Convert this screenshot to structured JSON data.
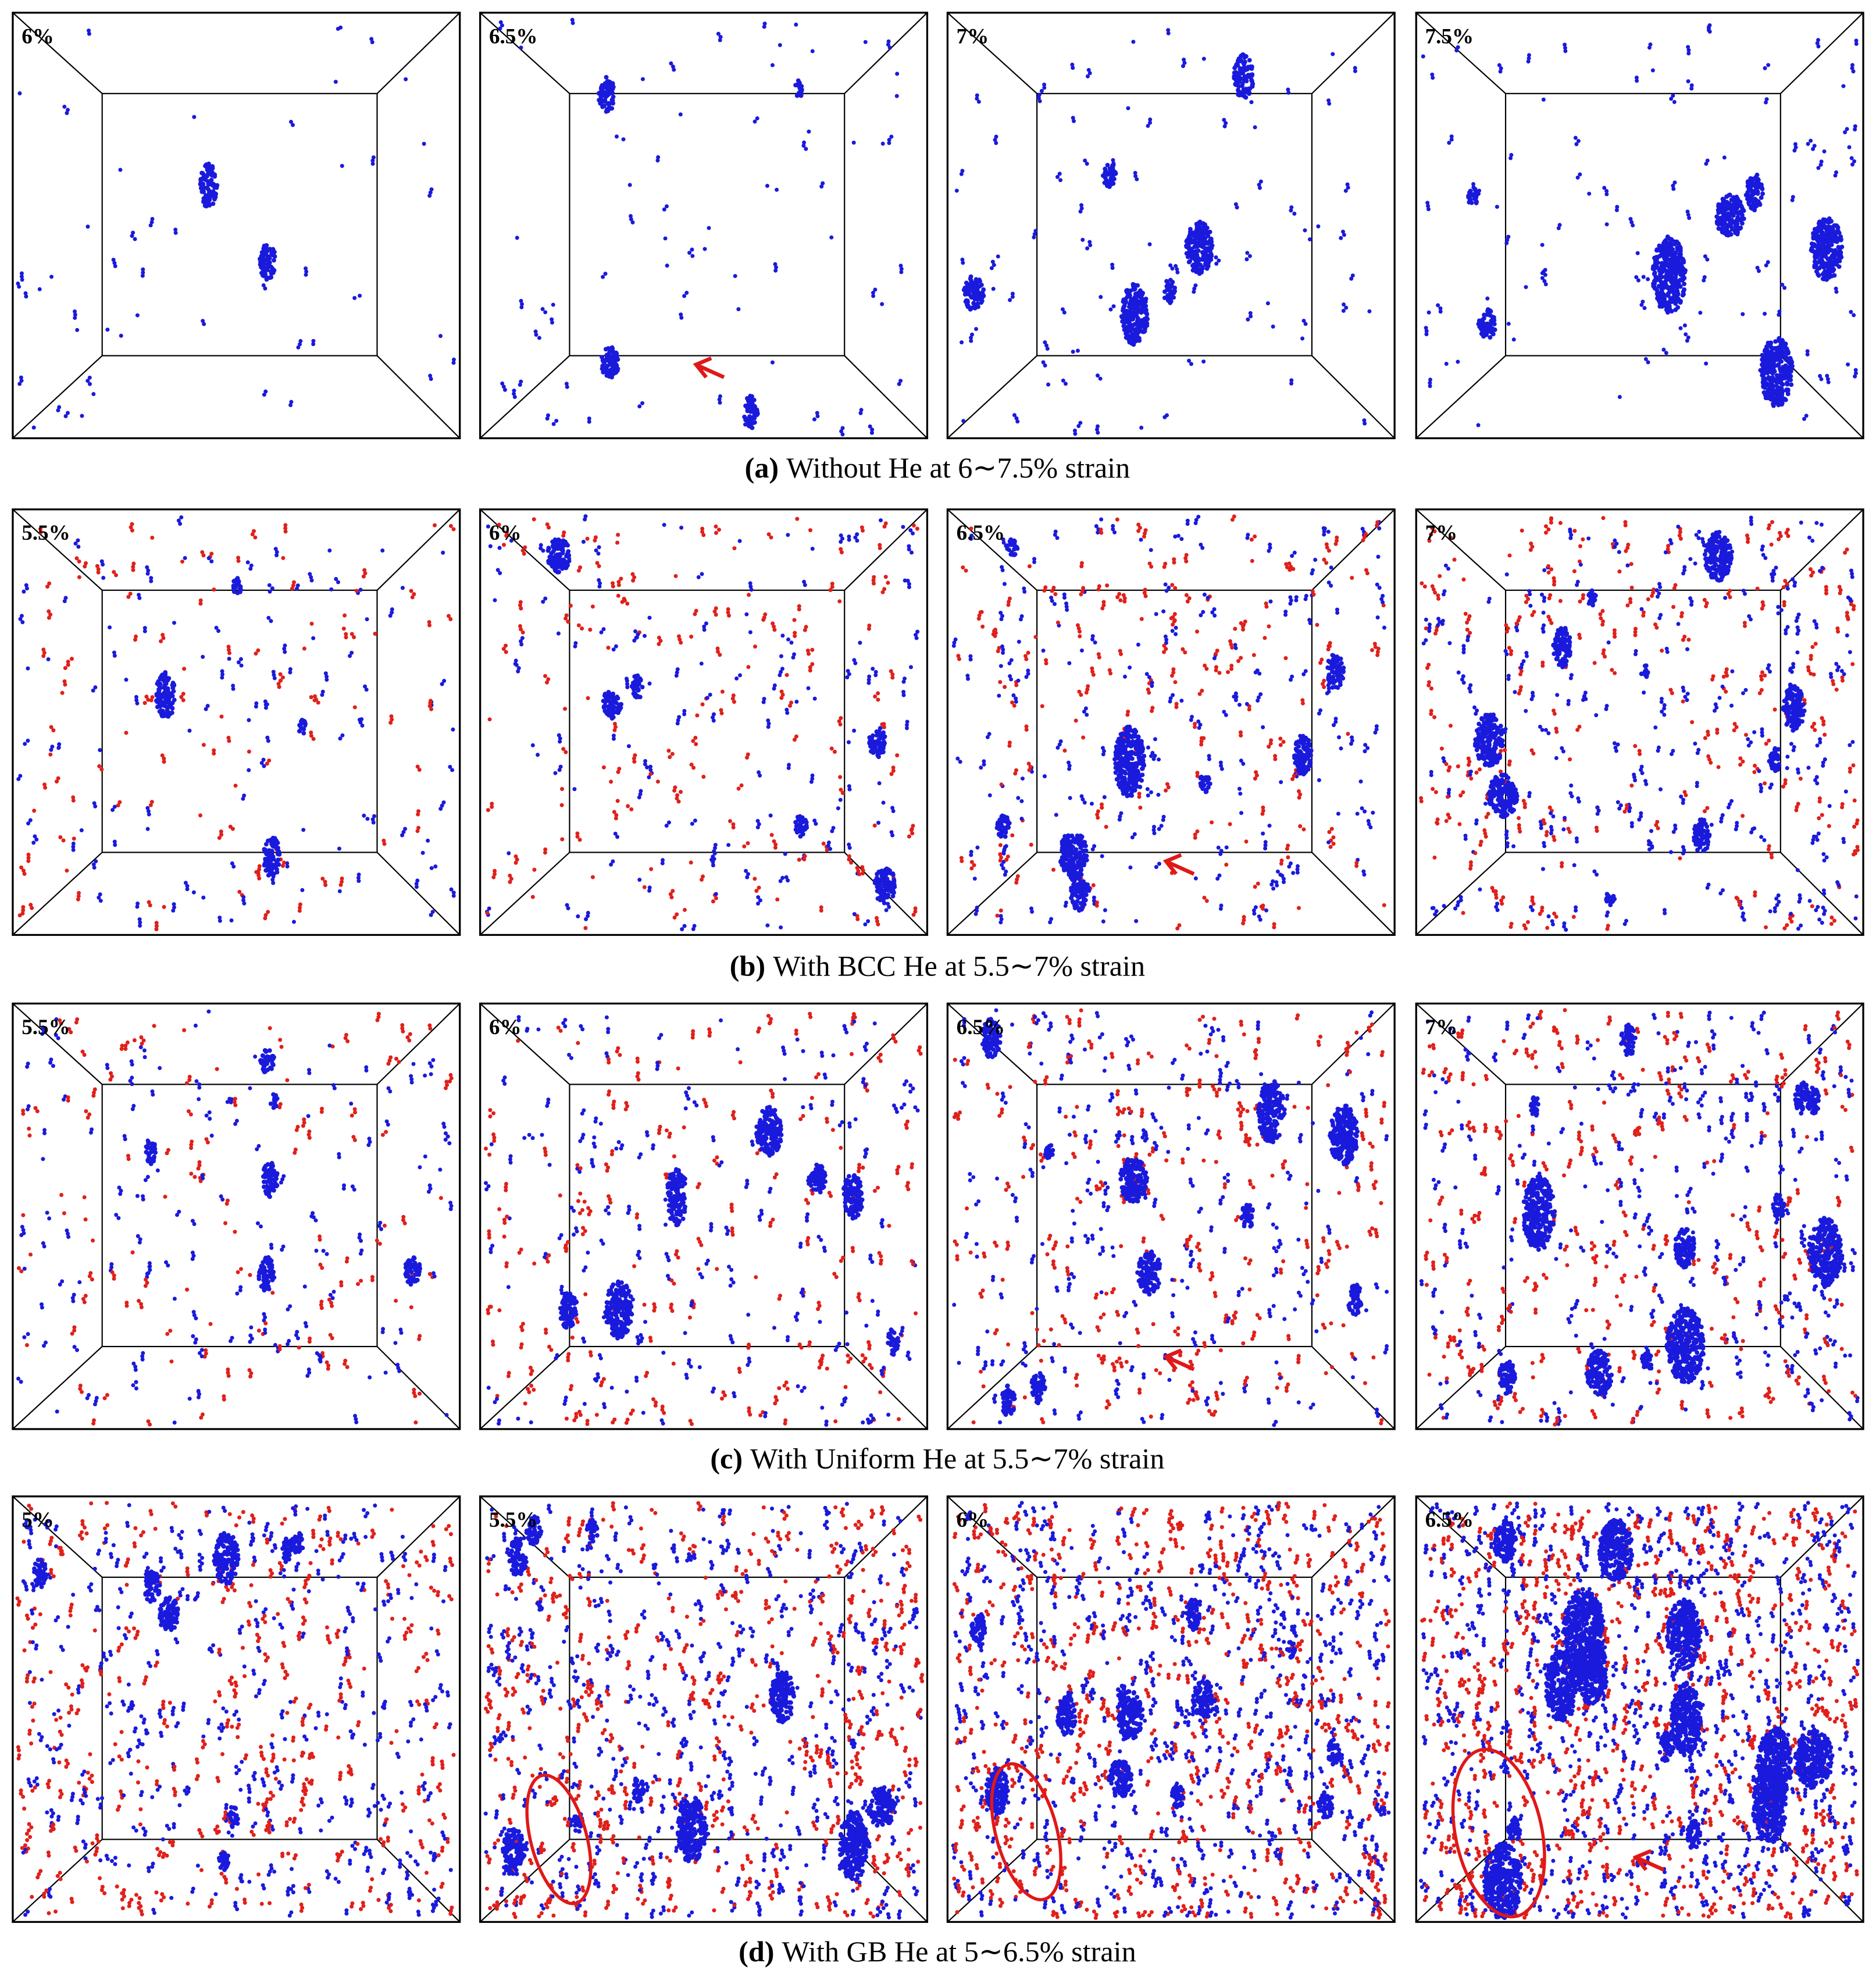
{
  "figure": {
    "rows": [
      {
        "label": "(a)",
        "caption": "Without He at 6∼7.5% strain",
        "panels": [
          "6%",
          "6.5%",
          "7%",
          "7.5%"
        ],
        "atom_colors": [
          "#1a1adc"
        ]
      },
      {
        "label": "(b)",
        "caption": "With BCC He at 5.5∼7% strain",
        "panels": [
          "5.5%",
          "6%",
          "6.5%",
          "7%"
        ],
        "atom_colors": [
          "#1a1adc",
          "#e0201a"
        ]
      },
      {
        "label": "(c)",
        "caption": "With Uniform He at 5.5∼7% strain",
        "panels": [
          "5.5%",
          "6%",
          "6.5%",
          "7%"
        ],
        "atom_colors": [
          "#1a1adc",
          "#e0201a"
        ]
      },
      {
        "label": "(d)",
        "caption": "With GB He at 5∼6.5% strain",
        "panels": [
          "5%",
          "5.5%",
          "6%",
          "6.5%"
        ],
        "atom_colors": [
          "#1a1adc",
          "#e0201a"
        ]
      }
    ]
  }
}
